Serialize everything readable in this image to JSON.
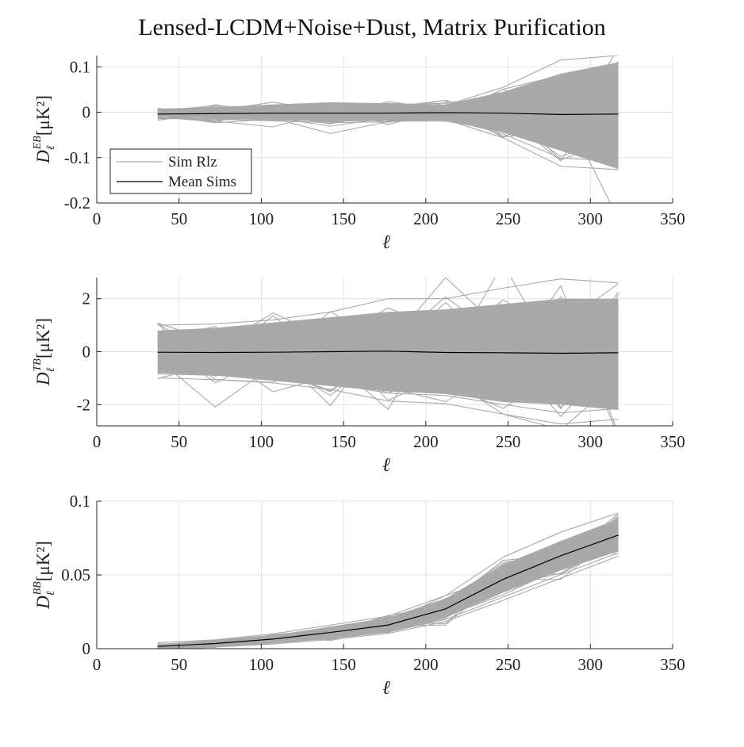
{
  "figure_title": "Lensed-LCDM+Noise+Dust, Matrix Purification",
  "colors": {
    "sim": "#a9a9a9",
    "mean": "#000000",
    "grid": "#e1e1e1",
    "axis": "#262626"
  },
  "chart_data": [
    {
      "type": "line",
      "ylabel_main": "D",
      "ylabel_sup": "EB",
      "ylabel_sub": "ℓ",
      "ylabel_units": "[μK²]",
      "xlabel": "ℓ",
      "xlim": [
        0,
        350
      ],
      "ylim": [
        -0.2,
        0.125
      ],
      "xticks": [
        0,
        50,
        100,
        150,
        200,
        250,
        300,
        350
      ],
      "xtick_labels": [
        "0",
        "50",
        "100",
        "150",
        "200",
        "250",
        "300",
        "350"
      ],
      "yticks": [
        -0.2,
        -0.1,
        0,
        0.1
      ],
      "ytick_labels": [
        "-0.2",
        "-0.1",
        "0",
        "0.1"
      ],
      "grid": true,
      "x": [
        37,
        72,
        107,
        142,
        177,
        212,
        247,
        282,
        317
      ],
      "band_upper": [
        0.008,
        0.011,
        0.017,
        0.022,
        0.02,
        0.017,
        0.045,
        0.085,
        0.11
      ],
      "band_lower": [
        -0.008,
        -0.012,
        -0.017,
        -0.02,
        -0.019,
        -0.018,
        -0.045,
        -0.085,
        -0.125
      ],
      "series": [
        {
          "name": "Sim Rlz",
          "values": [
            0.006,
            0.01,
            0.016,
            0.02,
            0.018,
            0.015,
            0.055,
            0.115,
            0.125
          ]
        },
        {
          "name": "Mean Sims",
          "values": [
            -0.004,
            -0.003,
            -0.002,
            -0.002,
            -0.002,
            -0.001,
            -0.002,
            -0.005,
            -0.004
          ]
        }
      ],
      "legend": {
        "position": "lower-left",
        "entries": [
          "Sim Rlz",
          "Mean Sims"
        ]
      }
    },
    {
      "type": "line",
      "ylabel_main": "D",
      "ylabel_sup": "TB",
      "ylabel_sub": "ℓ",
      "ylabel_units": "[μK²]",
      "xlabel": "ℓ",
      "xlim": [
        0,
        350
      ],
      "ylim": [
        -2.8,
        2.8
      ],
      "xticks": [
        0,
        50,
        100,
        150,
        200,
        250,
        300,
        350
      ],
      "xtick_labels": [
        "0",
        "50",
        "100",
        "150",
        "200",
        "250",
        "300",
        "350"
      ],
      "yticks": [
        -2,
        0,
        2
      ],
      "ytick_labels": [
        "-2",
        "0",
        "2"
      ],
      "grid": true,
      "x": [
        37,
        72,
        107,
        142,
        177,
        212,
        247,
        282,
        317
      ],
      "band_upper": [
        0.8,
        0.9,
        1.1,
        1.3,
        1.5,
        1.6,
        1.8,
        2.0,
        2.0
      ],
      "band_lower": [
        -0.8,
        -0.9,
        -1.1,
        -1.3,
        -1.5,
        -1.6,
        -1.9,
        -2.0,
        -2.2
      ],
      "series": [
        {
          "name": "Sim Rlz",
          "values": [
            1.0,
            1.05,
            1.2,
            1.5,
            2.0,
            2.0,
            2.4,
            2.75,
            2.6
          ]
        },
        {
          "name": "Mean Sims",
          "values": [
            -0.02,
            -0.03,
            -0.02,
            0.0,
            0.02,
            -0.03,
            -0.04,
            -0.06,
            -0.04
          ]
        }
      ]
    },
    {
      "type": "line",
      "ylabel_main": "D",
      "ylabel_sup": "BB",
      "ylabel_sub": "ℓ",
      "ylabel_units": "[μK²]",
      "xlabel": "ℓ",
      "xlim": [
        0,
        350
      ],
      "ylim": [
        0,
        0.1
      ],
      "xticks": [
        0,
        50,
        100,
        150,
        200,
        250,
        300,
        350
      ],
      "xtick_labels": [
        "0",
        "50",
        "100",
        "150",
        "200",
        "250",
        "300",
        "350"
      ],
      "yticks": [
        0,
        0.05,
        0.1
      ],
      "ytick_labels": [
        "0",
        "0.05",
        "0.1"
      ],
      "grid": true,
      "x": [
        37,
        72,
        107,
        142,
        177,
        212,
        247,
        282,
        317
      ],
      "band_upper": [
        0.003,
        0.006,
        0.009,
        0.015,
        0.021,
        0.034,
        0.057,
        0.073,
        0.088
      ],
      "band_lower": [
        0.0,
        0.001,
        0.004,
        0.007,
        0.011,
        0.021,
        0.038,
        0.053,
        0.066
      ],
      "series": [
        {
          "name": "Sim Rlz",
          "values": [
            0.004,
            0.006,
            0.01,
            0.016,
            0.022,
            0.036,
            0.062,
            0.079,
            0.092
          ]
        },
        {
          "name": "Mean Sims",
          "values": [
            0.0015,
            0.0035,
            0.0065,
            0.011,
            0.016,
            0.027,
            0.047,
            0.063,
            0.077
          ]
        }
      ]
    }
  ]
}
